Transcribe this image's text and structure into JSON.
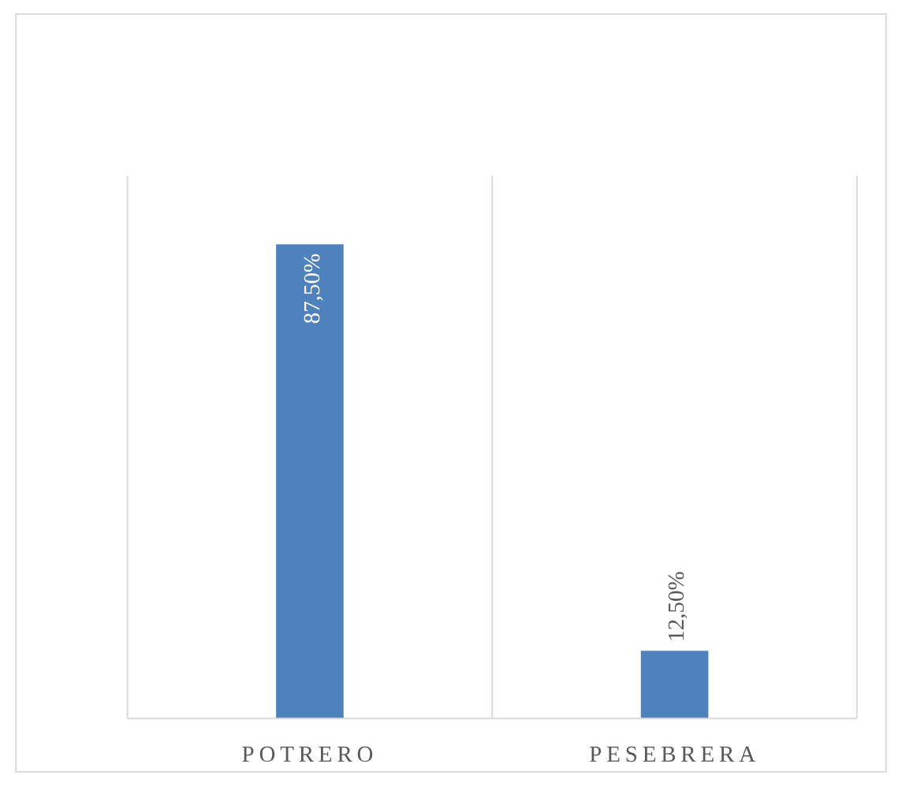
{
  "chart_data": {
    "type": "bar",
    "categories": [
      "POTRERO",
      "PESEBRERA"
    ],
    "values": [
      87.5,
      12.5
    ],
    "color": "#4f81bd",
    "value_labels": [
      "87,50%",
      "12,50%"
    ],
    "grid": "x"
  }
}
